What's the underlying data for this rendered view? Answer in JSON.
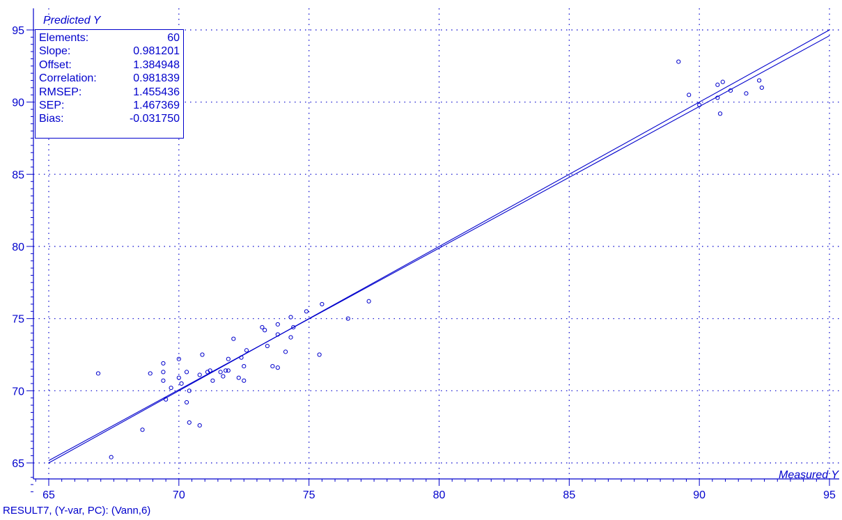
{
  "footer_text": "RESULT7, (Y-var, PC): (Vann,6)",
  "colors": {
    "accent": "#0000cc",
    "background": "#ffffff"
  },
  "stats": [
    {
      "label": "Elements:",
      "value": "60"
    },
    {
      "label": "Slope:",
      "value": "0.981201"
    },
    {
      "label": "Offset:",
      "value": "1.384948"
    },
    {
      "label": "Correlation:",
      "value": "0.981839"
    },
    {
      "label": "RMSEP:",
      "value": "1.455436"
    },
    {
      "label": "SEP:",
      "value": "1.467369"
    },
    {
      "label": "Bias:",
      "value": "-0.031750"
    }
  ],
  "chart_data": {
    "type": "scatter",
    "title": "",
    "xlabel": "Measured Y",
    "ylabel": "Predicted Y",
    "xlim": [
      65,
      95
    ],
    "ylim": [
      65,
      95
    ],
    "xticks": [
      65,
      70,
      75,
      80,
      85,
      90,
      95
    ],
    "yticks": [
      65,
      70,
      75,
      80,
      85,
      90,
      95
    ],
    "grid": true,
    "lines": [
      {
        "slope": 1.0,
        "offset": 0.0
      },
      {
        "slope": 0.981201,
        "offset": 1.384948
      }
    ],
    "points": [
      [
        66.9,
        71.2
      ],
      [
        67.4,
        65.4
      ],
      [
        68.6,
        67.3
      ],
      [
        68.9,
        71.2
      ],
      [
        69.4,
        71.9
      ],
      [
        69.4,
        71.3
      ],
      [
        69.4,
        70.7
      ],
      [
        69.5,
        69.4
      ],
      [
        69.7,
        70.2
      ],
      [
        70.0,
        70.9
      ],
      [
        70.0,
        72.2
      ],
      [
        70.1,
        70.5
      ],
      [
        70.3,
        71.3
      ],
      [
        70.3,
        69.2
      ],
      [
        70.4,
        70.0
      ],
      [
        70.4,
        67.8
      ],
      [
        70.8,
        71.1
      ],
      [
        70.8,
        67.6
      ],
      [
        70.9,
        72.5
      ],
      [
        71.1,
        71.3
      ],
      [
        71.2,
        71.4
      ],
      [
        71.3,
        70.7
      ],
      [
        71.6,
        71.3
      ],
      [
        71.7,
        71.0
      ],
      [
        71.8,
        71.4
      ],
      [
        71.9,
        71.4
      ],
      [
        71.9,
        72.2
      ],
      [
        72.1,
        73.6
      ],
      [
        72.3,
        70.9
      ],
      [
        72.4,
        72.3
      ],
      [
        72.5,
        71.7
      ],
      [
        72.5,
        70.7
      ],
      [
        72.6,
        72.8
      ],
      [
        73.2,
        74.4
      ],
      [
        73.3,
        74.2
      ],
      [
        73.4,
        73.1
      ],
      [
        73.6,
        71.7
      ],
      [
        73.8,
        74.6
      ],
      [
        73.8,
        73.9
      ],
      [
        73.8,
        71.6
      ],
      [
        74.1,
        72.7
      ],
      [
        74.3,
        75.1
      ],
      [
        74.3,
        73.7
      ],
      [
        74.4,
        74.4
      ],
      [
        74.9,
        75.5
      ],
      [
        75.4,
        72.5
      ],
      [
        75.5,
        76.0
      ],
      [
        76.5,
        75.0
      ],
      [
        77.3,
        76.2
      ],
      [
        89.2,
        92.8
      ],
      [
        89.6,
        90.5
      ],
      [
        90.0,
        89.8
      ],
      [
        90.7,
        90.3
      ],
      [
        90.7,
        91.2
      ],
      [
        90.8,
        89.2
      ],
      [
        90.9,
        91.4
      ],
      [
        91.2,
        90.8
      ],
      [
        91.8,
        90.6
      ],
      [
        92.3,
        91.5
      ],
      [
        92.4,
        91.0
      ]
    ]
  }
}
